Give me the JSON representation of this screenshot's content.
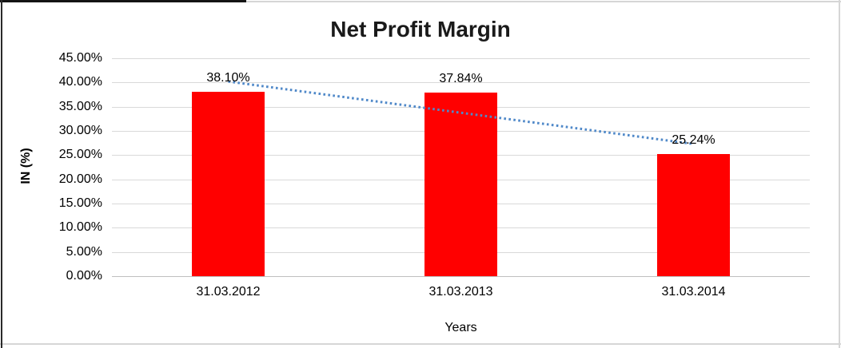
{
  "window": {
    "background": "#ffffff"
  },
  "chart_data": {
    "type": "bar",
    "title": "Net Profit Margin",
    "categories": [
      "31.03.2012",
      "31.03.2013",
      "31.03.2014"
    ],
    "values": [
      38.1,
      37.84,
      25.24
    ],
    "data_labels": [
      "38.10%",
      "37.84%",
      "25.24%"
    ],
    "xlabel": "Years",
    "ylabel": "IN (%)",
    "ylim": [
      0,
      45
    ],
    "grid": true,
    "legend": "none",
    "yticks": [
      {
        "value": 45,
        "label": "45.00%"
      },
      {
        "value": 40,
        "label": "40.00%"
      },
      {
        "value": 35,
        "label": "35.00%"
      },
      {
        "value": 30,
        "label": "30.00%"
      },
      {
        "value": 25,
        "label": "25.00%"
      },
      {
        "value": 20,
        "label": "20.00%"
      },
      {
        "value": 15,
        "label": "15.00%"
      },
      {
        "value": 10,
        "label": "10.00%"
      },
      {
        "value": 5,
        "label": "5.00%"
      },
      {
        "value": 0,
        "label": "0.00%"
      }
    ],
    "colors": {
      "bar": "#FF0000",
      "gridline": "#D9D9D9",
      "axis_line": "#BFBFBF",
      "text": "#000000",
      "trendline": "#5089C9"
    },
    "trendline": {
      "type": "linear",
      "style": "dotted",
      "start_value": 40.2,
      "end_value": 27.3
    }
  }
}
